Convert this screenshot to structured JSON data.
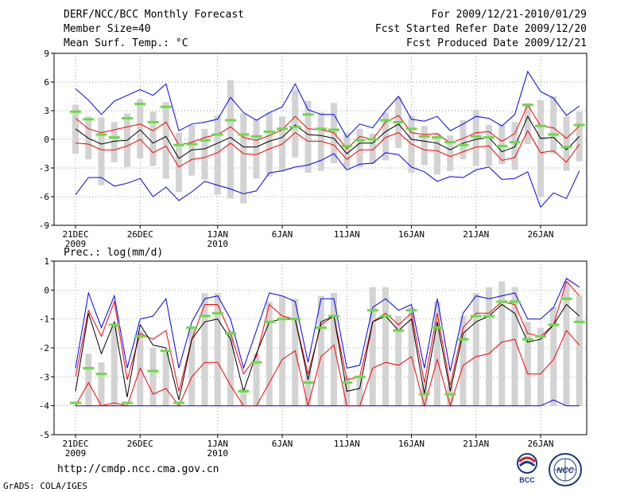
{
  "header": {
    "left": [
      "DERF/NCC/BCC Monthly Forecast",
      "Member Size=40",
      "Mean Surf. Temp.: °C"
    ],
    "right": [
      "For 2009/12/21-2010/01/29",
      "Fcst Started Refer Date 2009/12/20",
      "Fcst Produced Date 2009/12/21"
    ]
  },
  "precip_label": "Prec.: log(mm/d)",
  "url": "http://cmdp.ncc.cma.gov.cn",
  "credit": "GrADS: COLA/IGES",
  "logos": [
    "BCC",
    "NCC"
  ],
  "x_ticks": [
    {
      "day": 1,
      "label": "21DEC",
      "year": "2009"
    },
    {
      "day": 6,
      "label": "26DEC",
      "year": ""
    },
    {
      "day": 12,
      "label": "1JAN",
      "year": "2010"
    },
    {
      "day": 17,
      "label": "6JAN",
      "year": ""
    },
    {
      "day": 22,
      "label": "11JAN",
      "year": ""
    },
    {
      "day": 27,
      "label": "16JAN",
      "year": ""
    },
    {
      "day": 32,
      "label": "21JAN",
      "year": ""
    },
    {
      "day": 37,
      "label": "26JAN",
      "year": ""
    }
  ],
  "colors": {
    "box": "#d3d3d3",
    "outer": "#0000ff",
    "inner": "#ff0000",
    "median": "#000000",
    "obs": "#66dd44",
    "grid": "#777777"
  },
  "chart_data": [
    {
      "type": "line",
      "title": "Mean Surf. Temp.: °C",
      "ylim": [
        -9,
        9
      ],
      "yticks": [
        -9,
        -6,
        -3,
        0,
        3,
        6,
        9
      ],
      "x": [
        1,
        2,
        3,
        4,
        5,
        6,
        7,
        8,
        9,
        10,
        11,
        12,
        13,
        14,
        15,
        16,
        17,
        18,
        19,
        20,
        21,
        22,
        23,
        24,
        25,
        26,
        27,
        28,
        29,
        30,
        31,
        32,
        33,
        34,
        35,
        36,
        37,
        38,
        39,
        40
      ],
      "series": [
        {
          "name": "max",
          "values": [
            5.3,
            4.1,
            2.6,
            4,
            4.6,
            5.2,
            4.6,
            5.8,
            0.9,
            1.6,
            1.8,
            2.1,
            4.4,
            2.8,
            2,
            2.8,
            3.4,
            5.8,
            3.1,
            2.6,
            2.6,
            0.2,
            1.6,
            1.2,
            3,
            4.5,
            2.1,
            1.9,
            2.4,
            0.9,
            1.6,
            2.4,
            2.2,
            1.4,
            2.6,
            7.1,
            5,
            4.3,
            2.5,
            3.5
          ]
        },
        {
          "name": "upper",
          "values": [
            2.2,
            1.1,
            0.7,
            1,
            1.3,
            1.6,
            0.9,
            1.8,
            -0.6,
            -0.3,
            0.2,
            0.5,
            1.3,
            0.2,
            -0.1,
            0.4,
            1,
            2.4,
            1.1,
            1,
            0.7,
            -1,
            0.3,
            0,
            1.8,
            2.5,
            0.7,
            0.5,
            0.6,
            -0.4,
            0.1,
            0.7,
            0.8,
            -0.2,
            0.6,
            3.6,
            1.4,
            1.2,
            0.1,
            1.4
          ]
        },
        {
          "name": "median",
          "values": [
            1.1,
            0.1,
            -0.5,
            -0.2,
            -0.1,
            1,
            -0.4,
            0.3,
            -2,
            -1.1,
            -1,
            -0.4,
            0.2,
            -0.8,
            -0.8,
            -0.2,
            0.2,
            1.5,
            0.5,
            0.4,
            0.1,
            -1.5,
            -0.4,
            -0.4,
            0.8,
            1.6,
            0,
            -0.2,
            -0.4,
            -1.1,
            -0.4,
            0,
            0.2,
            -1.3,
            -0.8,
            2.4,
            0.1,
            0.2,
            -1.1,
            0.3
          ]
        },
        {
          "name": "lower",
          "values": [
            -0.4,
            -0.5,
            -1.1,
            -1.1,
            -0.7,
            0,
            -1.4,
            -0.7,
            -2.9,
            -2.1,
            -1.9,
            -1.4,
            -0.4,
            -1.5,
            -1.6,
            -1,
            -0.5,
            0.7,
            -0.2,
            -0.2,
            -0.6,
            -2.1,
            -1.1,
            -1.1,
            0.2,
            0.7,
            -0.5,
            -1.1,
            -1.2,
            -1.8,
            -1.3,
            -0.8,
            -0.7,
            -2.2,
            -1.9,
            0.9,
            -1.4,
            -1.2,
            -2.4,
            -0.5
          ]
        },
        {
          "name": "min",
          "values": [
            -5.8,
            -4,
            -4,
            -4.9,
            -4.6,
            -4.1,
            -6,
            -5,
            -6.4,
            -5.5,
            -4.4,
            -4.8,
            -5.2,
            -5.7,
            -5.4,
            -3.5,
            -3.3,
            -2.9,
            -2.7,
            -2.2,
            -1.5,
            -3.2,
            -2.6,
            -2.5,
            -1.4,
            -1.6,
            -2.9,
            -3.4,
            -4.4,
            -3.9,
            -4,
            -3.2,
            -2.9,
            -4.2,
            -4.1,
            -3.4,
            -7.1,
            -5.6,
            -6.2,
            -3.3
          ]
        },
        {
          "name": "box_high",
          "values": [
            3.6,
            2.4,
            2.3,
            1.8,
            2.7,
            4.2,
            2.9,
            3.9,
            0.7,
            1.5,
            1.1,
            2.5,
            6.2,
            2.7,
            2.1,
            2.8,
            2.4,
            5.2,
            4,
            2.8,
            3.8,
            0.7,
            1.1,
            0.6,
            2.8,
            4.4,
            2.5,
            1.4,
            0.6,
            0.4,
            2,
            3.1,
            1.5,
            1.5,
            1.8,
            3.8,
            4.1,
            4.5,
            2.4,
            2.9
          ]
        },
        {
          "name": "box_low",
          "values": [
            -1.5,
            -2.1,
            -4.8,
            -2.4,
            -2.9,
            -2,
            -2.8,
            -4.1,
            -5.5,
            -3.8,
            -4.2,
            -5.8,
            -6.2,
            -6.7,
            -4.1,
            -3.9,
            -3.3,
            -1.9,
            -3.5,
            -3.3,
            -2.5,
            -3.1,
            -2.9,
            -2.6,
            -2.2,
            -0.9,
            -3.5,
            -2.7,
            -3.7,
            -3.3,
            -2.1,
            -2.8,
            -2.8,
            -2.6,
            -3.2,
            -0.5,
            -6,
            -1.5,
            -3.3,
            -2.3
          ]
        },
        {
          "name": "observed",
          "values": [
            2.9,
            2.1,
            0.5,
            0.2,
            2.2,
            3.7,
            1.8,
            3.4,
            -0.6,
            -0.5,
            -0.1,
            0.5,
            2,
            0.5,
            0.3,
            0.8,
            1.1,
            1.3,
            2.6,
            1.1,
            1,
            -0.7,
            -0.1,
            0,
            2,
            1.8,
            1.1,
            0.3,
            0.2,
            -0.3,
            -0.6,
            0.3,
            0.2,
            -0.7,
            -0.3,
            3.6,
            1.4,
            0.5,
            -0.8,
            1.5
          ]
        }
      ]
    },
    {
      "type": "line",
      "title": "Prec.: log(mm/d)",
      "ylim": [
        -5,
        1
      ],
      "yticks": [
        -5,
        -4,
        -3,
        -2,
        -1,
        0,
        1
      ],
      "x": [
        1,
        2,
        3,
        4,
        5,
        6,
        7,
        8,
        9,
        10,
        11,
        12,
        13,
        14,
        15,
        16,
        17,
        18,
        19,
        20,
        21,
        22,
        23,
        24,
        25,
        26,
        27,
        28,
        29,
        30,
        31,
        32,
        33,
        34,
        35,
        36,
        37,
        38,
        39,
        40
      ],
      "series": [
        {
          "name": "max",
          "values": [
            -2.7,
            -0.1,
            -1.3,
            -0.2,
            -2.7,
            -1,
            -0.9,
            -0.3,
            -2.7,
            -1.1,
            -0.3,
            -0.2,
            -1,
            -2.7,
            -1.4,
            -0.1,
            -0.2,
            -0.4,
            -2.5,
            -0.3,
            -0.3,
            -2.7,
            -2.6,
            -0.6,
            -0.3,
            -0.7,
            -0.5,
            -2.7,
            -0.3,
            -2.8,
            -0.8,
            -0.2,
            -0.3,
            -0.2,
            -0.1,
            -1,
            -1,
            -0.6,
            0.4,
            0.1
          ]
        },
        {
          "name": "upper",
          "values": [
            -3,
            -0.7,
            -1.6,
            -0.4,
            -3.1,
            -1.5,
            -1.7,
            -1.4,
            -3.5,
            -1.7,
            -0.5,
            -0.5,
            -1.5,
            -2.9,
            -2.3,
            -0.5,
            -0.9,
            -1,
            -2.9,
            -1.2,
            -0.9,
            -3.1,
            -3,
            -1.1,
            -0.8,
            -1.2,
            -0.8,
            -3.2,
            -0.8,
            -3.3,
            -1.3,
            -0.8,
            -0.8,
            -0.4,
            -0.5,
            -1.5,
            -1.6,
            -1.2,
            0.3,
            -0.2
          ]
        },
        {
          "name": "median",
          "values": [
            -3.5,
            -0.8,
            -2.2,
            -1.1,
            -3.7,
            -1.2,
            -1.9,
            -2,
            -3.8,
            -1.7,
            -1.1,
            -1,
            -1.7,
            -3.5,
            -2.2,
            -1.1,
            -1,
            -1,
            -3.1,
            -1.1,
            -0.9,
            -3.5,
            -3.4,
            -1.1,
            -0.9,
            -1.4,
            -1,
            -3.6,
            -1.1,
            -3.5,
            -1.5,
            -1.1,
            -0.9,
            -0.5,
            -0.8,
            -1.8,
            -1.7,
            -1.2,
            -0.5,
            -0.9
          ]
        },
        {
          "name": "lower",
          "values": [
            -4,
            -3.2,
            -4,
            -3.9,
            -4,
            -2.7,
            -3.6,
            -3.4,
            -4,
            -3,
            -2.5,
            -2.5,
            -3.3,
            -4,
            -4,
            -3.2,
            -2.4,
            -2.1,
            -4,
            -2.3,
            -1.9,
            -4,
            -4,
            -2.7,
            -2.5,
            -2.6,
            -2.3,
            -4,
            -2.4,
            -4,
            -2.6,
            -2.3,
            -2.2,
            -1.8,
            -1.7,
            -2.9,
            -2.9,
            -2.4,
            -1.4,
            -1.9
          ]
        },
        {
          "name": "min",
          "values": [
            -4,
            -4,
            -4,
            -4,
            -4,
            -4,
            -4,
            -4,
            -4,
            -4,
            -4,
            -4,
            -4,
            -4,
            -4,
            -4,
            -4,
            -4,
            -4,
            -4,
            -4,
            -4,
            -4,
            -4,
            -4,
            -4,
            -4,
            -4,
            -4,
            -4,
            -4,
            -4,
            -4,
            -4,
            -4,
            -4,
            -4,
            -3.8,
            -4,
            -4
          ]
        },
        {
          "name": "box_high",
          "values": [
            -4,
            -2.2,
            -2.5,
            -1.2,
            -4,
            -1.4,
            -2,
            -2.1,
            -4,
            -1.3,
            -0.1,
            -0.1,
            -1.4,
            -3.4,
            -2.2,
            -0.4,
            -0.2,
            -0.3,
            -2.8,
            -0.2,
            -0.1,
            -3,
            -3,
            0.1,
            0.1,
            -0.9,
            -0.6,
            -3.2,
            -0.4,
            -3.3,
            -0.9,
            -0.1,
            0.1,
            0.3,
            0.1,
            -1.1,
            -1.3,
            -0.6,
            0.3,
            -0.2
          ]
        },
        {
          "name": "box_low",
          "values": [
            -4,
            -4,
            -4,
            -4,
            -4,
            -4,
            -4,
            -4,
            -4,
            -4,
            -4,
            -4,
            -4,
            -4,
            -4,
            -4,
            -4,
            -4,
            -4,
            -4,
            -4,
            -4,
            -4,
            -4,
            -4,
            -4,
            -4,
            -4,
            -4,
            -4,
            -4,
            -4,
            -4,
            -4,
            -4,
            -4,
            -4,
            -4,
            -4,
            -4
          ]
        },
        {
          "name": "observed",
          "values": [
            -3.9,
            -2.7,
            -2.9,
            -1.2,
            -3.9,
            -1.6,
            -2.8,
            -2.1,
            -3.9,
            -1.3,
            -0.9,
            -0.8,
            -1.5,
            -3.5,
            -2.5,
            -1.1,
            -1,
            -1,
            -3.2,
            -1.3,
            -0.9,
            -3.2,
            -3,
            -0.7,
            -0.9,
            -1.4,
            -0.7,
            -3.6,
            -1.3,
            -3.6,
            -1.7,
            -0.9,
            -0.9,
            -0.4,
            -0.4,
            -1.7,
            -1.6,
            -1.2,
            -0.3,
            -1.1
          ]
        }
      ]
    }
  ]
}
